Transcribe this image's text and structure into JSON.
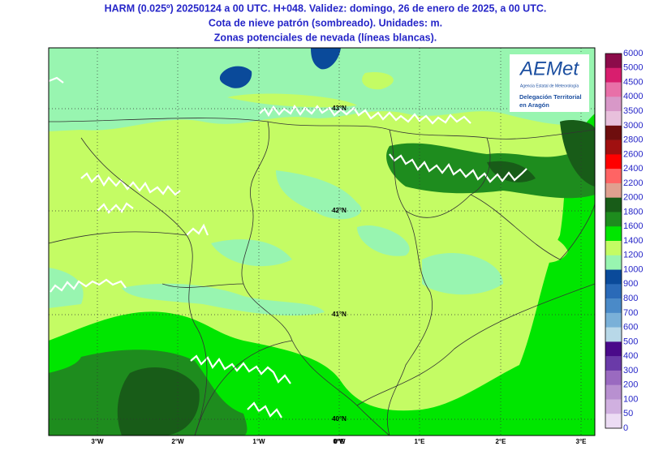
{
  "header": {
    "lines": [
      "HARM (0.025º) 20250124 a 00 UTC. H+048. Validez: domingo, 26 de enero de 2025, a 00 UTC.",
      "Cota de nieve patrón (sombreado). Unidades: m.",
      "Zonas potenciales de nevada (líneas blancas)."
    ]
  },
  "map": {
    "lat_labels": [
      "43°N",
      "42°N",
      "41°N",
      "40°N"
    ],
    "lon_labels": [
      "3°W",
      "2°W",
      "1°W",
      "0°W",
      "0°E",
      "1°E",
      "2°E",
      "3°E"
    ]
  },
  "logo": {
    "brand": "AEMet",
    "agency": "Agencia Estatal de Meteorología",
    "office_line1": "Delegación Territorial",
    "office_line2": "en Aragón"
  },
  "colorbar": {
    "levels": [
      6000,
      5000,
      4500,
      4000,
      3500,
      3000,
      2800,
      2600,
      2400,
      2200,
      2000,
      1800,
      1600,
      1400,
      1200,
      1000,
      900,
      800,
      700,
      600,
      500,
      400,
      300,
      200,
      100,
      50,
      0
    ],
    "colors": [
      "#8c0b4a",
      "#d81e6e",
      "#e870a8",
      "#d898c8",
      "#e8c0dc",
      "#6e0e0e",
      "#a01010",
      "#ff0000",
      "#ff6464",
      "#e0a090",
      "#185c18",
      "#1e8c1e",
      "#00e600",
      "#c4fc64",
      "#98f5b0",
      "#0a4a9a",
      "#2a6ab8",
      "#4a8ac8",
      "#7ab0d8",
      "#b8d8e8",
      "#4a0a8a",
      "#6a3aa8",
      "#9a6ac0",
      "#b890d0",
      "#d0b0e0",
      "#ecdcf4"
    ]
  }
}
